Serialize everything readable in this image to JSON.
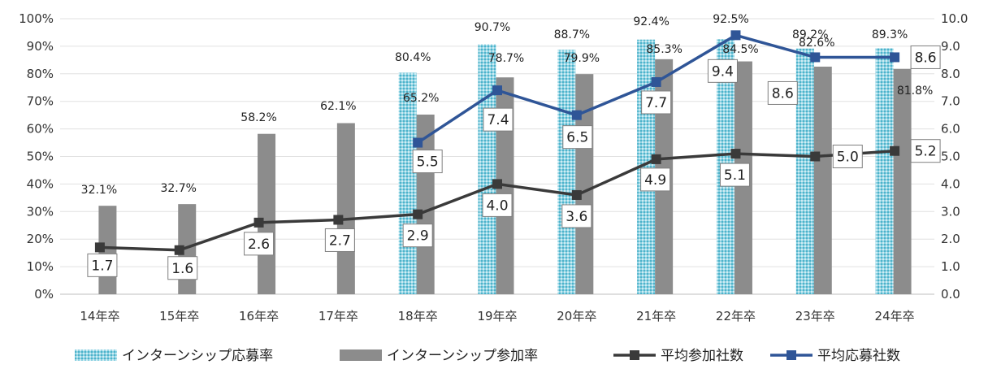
{
  "chart_data": {
    "type": "bar",
    "categories": [
      "14年卒",
      "15年卒",
      "16年卒",
      "17年卒",
      "18年卒",
      "19年卒",
      "20年卒",
      "21年卒",
      "22年卒",
      "23年卒",
      "24年卒"
    ],
    "series": [
      {
        "name": "インターンシップ応募率",
        "kind": "bar",
        "axis": "left",
        "color": "#3fb3cc",
        "pattern": "dotted",
        "values": [
          null,
          null,
          null,
          null,
          80.4,
          90.7,
          88.7,
          92.4,
          92.5,
          89.2,
          89.3
        ],
        "labels": [
          "",
          "",
          "",
          "",
          "80.4%",
          "90.7%",
          "88.7%",
          "92.4%",
          "92.5%",
          "89.2%",
          "89.3%"
        ]
      },
      {
        "name": "インターンシップ参加率",
        "kind": "bar",
        "axis": "left",
        "color": "#8c8c8c",
        "values": [
          32.1,
          32.7,
          58.2,
          62.1,
          65.2,
          78.7,
          79.9,
          85.3,
          84.5,
          82.6,
          81.8
        ],
        "labels": [
          "32.1%",
          "32.7%",
          "58.2%",
          "62.1%",
          "65.2%",
          "78.7%",
          "79.9%",
          "85.3%",
          "84.5%",
          "82.6%",
          "81.8%"
        ]
      },
      {
        "name": "平均参加社数",
        "kind": "line",
        "axis": "right",
        "color": "#3a3a3a",
        "values": [
          1.7,
          1.6,
          2.6,
          2.7,
          2.9,
          4.0,
          3.6,
          4.9,
          5.1,
          5.0,
          5.2
        ],
        "labels": [
          "1.7",
          "1.6",
          "2.6",
          "2.7",
          "2.9",
          "4.0",
          "3.6",
          "4.9",
          "5.1",
          "5.0",
          "5.2"
        ]
      },
      {
        "name": "平均応募社数",
        "kind": "line",
        "axis": "right",
        "color": "#2f5597",
        "values": [
          null,
          null,
          null,
          null,
          5.5,
          7.4,
          6.5,
          7.7,
          9.4,
          8.6,
          8.6
        ],
        "labels": [
          "",
          "",
          "",
          "",
          "5.5",
          "7.4",
          "6.5",
          "7.7",
          "9.4",
          "8.6",
          "8.6"
        ]
      }
    ],
    "left_axis": {
      "min": 0,
      "max": 100,
      "ticks": [
        "0%",
        "10%",
        "20%",
        "30%",
        "40%",
        "50%",
        "60%",
        "70%",
        "80%",
        "90%",
        "100%"
      ]
    },
    "right_axis": {
      "min": 0,
      "max": 10,
      "ticks": [
        "0.0",
        "1.0",
        "2.0",
        "3.0",
        "4.0",
        "5.0",
        "6.0",
        "7.0",
        "8.0",
        "9.0",
        "10.0"
      ]
    },
    "grid": true,
    "legend_position": "bottom"
  }
}
